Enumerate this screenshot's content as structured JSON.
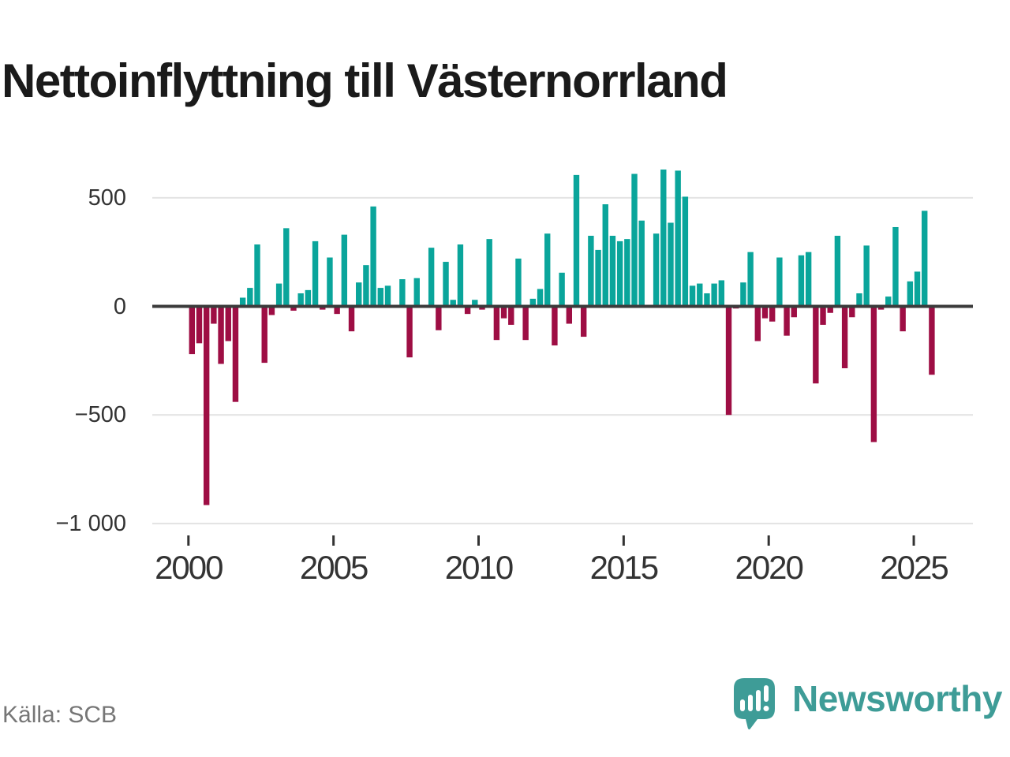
{
  "title": "Nettoinflyttning till Västernorrland",
  "source": "Källa: SCB",
  "logo": {
    "text": "Newsworthy"
  },
  "colors": {
    "positive": "#0aa59b",
    "negative": "#9e0e44",
    "zero_line": "#3b3b3b",
    "grid": "#e3e3e3",
    "axis_text": "#333333",
    "title_text": "#1a1a1a",
    "source_text": "#767676",
    "brand": "#3e9c97"
  },
  "chart_data": {
    "type": "bar",
    "title": "Nettoinflyttning till Västernorrland",
    "xlabel": "",
    "ylabel": "",
    "grid": true,
    "legend": false,
    "ylim": [
      -1000,
      660
    ],
    "yticks": [
      {
        "value": 500,
        "label": "500"
      },
      {
        "value": 0,
        "label": "0"
      },
      {
        "value": -500,
        "label": "−500"
      },
      {
        "value": -1000,
        "label": "−1 000"
      }
    ],
    "xticks": [
      {
        "year": 2000,
        "label": "2000"
      },
      {
        "year": 2005,
        "label": "2005"
      },
      {
        "year": 2010,
        "label": "2010"
      },
      {
        "year": 2015,
        "label": "2015"
      },
      {
        "year": 2020,
        "label": "2020"
      },
      {
        "year": 2025,
        "label": "2025"
      }
    ],
    "x": [
      "2000Q1",
      "2000Q2",
      "2000Q3",
      "2000Q4",
      "2001Q1",
      "2001Q2",
      "2001Q3",
      "2001Q4",
      "2002Q1",
      "2002Q2",
      "2002Q3",
      "2002Q4",
      "2003Q1",
      "2003Q2",
      "2003Q3",
      "2003Q4",
      "2004Q1",
      "2004Q2",
      "2004Q3",
      "2004Q4",
      "2005Q1",
      "2005Q2",
      "2005Q3",
      "2005Q4",
      "2006Q1",
      "2006Q2",
      "2006Q3",
      "2006Q4",
      "2007Q1",
      "2007Q2",
      "2007Q3",
      "2007Q4",
      "2008Q1",
      "2008Q2",
      "2008Q3",
      "2008Q4",
      "2009Q1",
      "2009Q2",
      "2009Q3",
      "2009Q4",
      "2010Q1",
      "2010Q2",
      "2010Q3",
      "2010Q4",
      "2011Q1",
      "2011Q2",
      "2011Q3",
      "2011Q4",
      "2012Q1",
      "2012Q2",
      "2012Q3",
      "2012Q4",
      "2013Q1",
      "2013Q2",
      "2013Q3",
      "2013Q4",
      "2014Q1",
      "2014Q2",
      "2014Q3",
      "2014Q4",
      "2015Q1",
      "2015Q2",
      "2015Q3",
      "2015Q4",
      "2016Q1",
      "2016Q2",
      "2016Q3",
      "2016Q4",
      "2017Q1",
      "2017Q2",
      "2017Q3",
      "2017Q4",
      "2018Q1",
      "2018Q2",
      "2018Q3",
      "2018Q4",
      "2019Q1",
      "2019Q2",
      "2019Q3",
      "2019Q4",
      "2020Q1",
      "2020Q2",
      "2020Q3",
      "2020Q4",
      "2021Q1",
      "2021Q2",
      "2021Q3",
      "2021Q4",
      "2022Q1",
      "2022Q2",
      "2022Q3",
      "2022Q4",
      "2023Q1",
      "2023Q2",
      "2023Q3",
      "2023Q4",
      "2024Q1",
      "2024Q2",
      "2024Q3",
      "2024Q4",
      "2025Q1",
      "2025Q2",
      "2025Q3"
    ],
    "values": [
      -220,
      -170,
      -915,
      -80,
      -265,
      -160,
      -440,
      40,
      85,
      285,
      -260,
      -40,
      105,
      360,
      -20,
      60,
      75,
      300,
      -15,
      225,
      -35,
      330,
      -115,
      110,
      190,
      460,
      85,
      95,
      0,
      125,
      -235,
      130,
      0,
      270,
      -110,
      205,
      30,
      285,
      -35,
      30,
      -15,
      310,
      -155,
      -55,
      -85,
      220,
      -155,
      35,
      80,
      335,
      -180,
      155,
      -80,
      605,
      -140,
      325,
      260,
      470,
      325,
      300,
      310,
      610,
      395,
      0,
      335,
      630,
      385,
      625,
      505,
      95,
      105,
      60,
      105,
      120,
      -500,
      -10,
      110,
      250,
      -160,
      -55,
      -70,
      225,
      -135,
      -50,
      235,
      250,
      -355,
      -85,
      -30,
      325,
      -285,
      -50,
      60,
      280,
      -625,
      -15,
      45,
      365,
      -115,
      115,
      160,
      440,
      -315
    ]
  }
}
